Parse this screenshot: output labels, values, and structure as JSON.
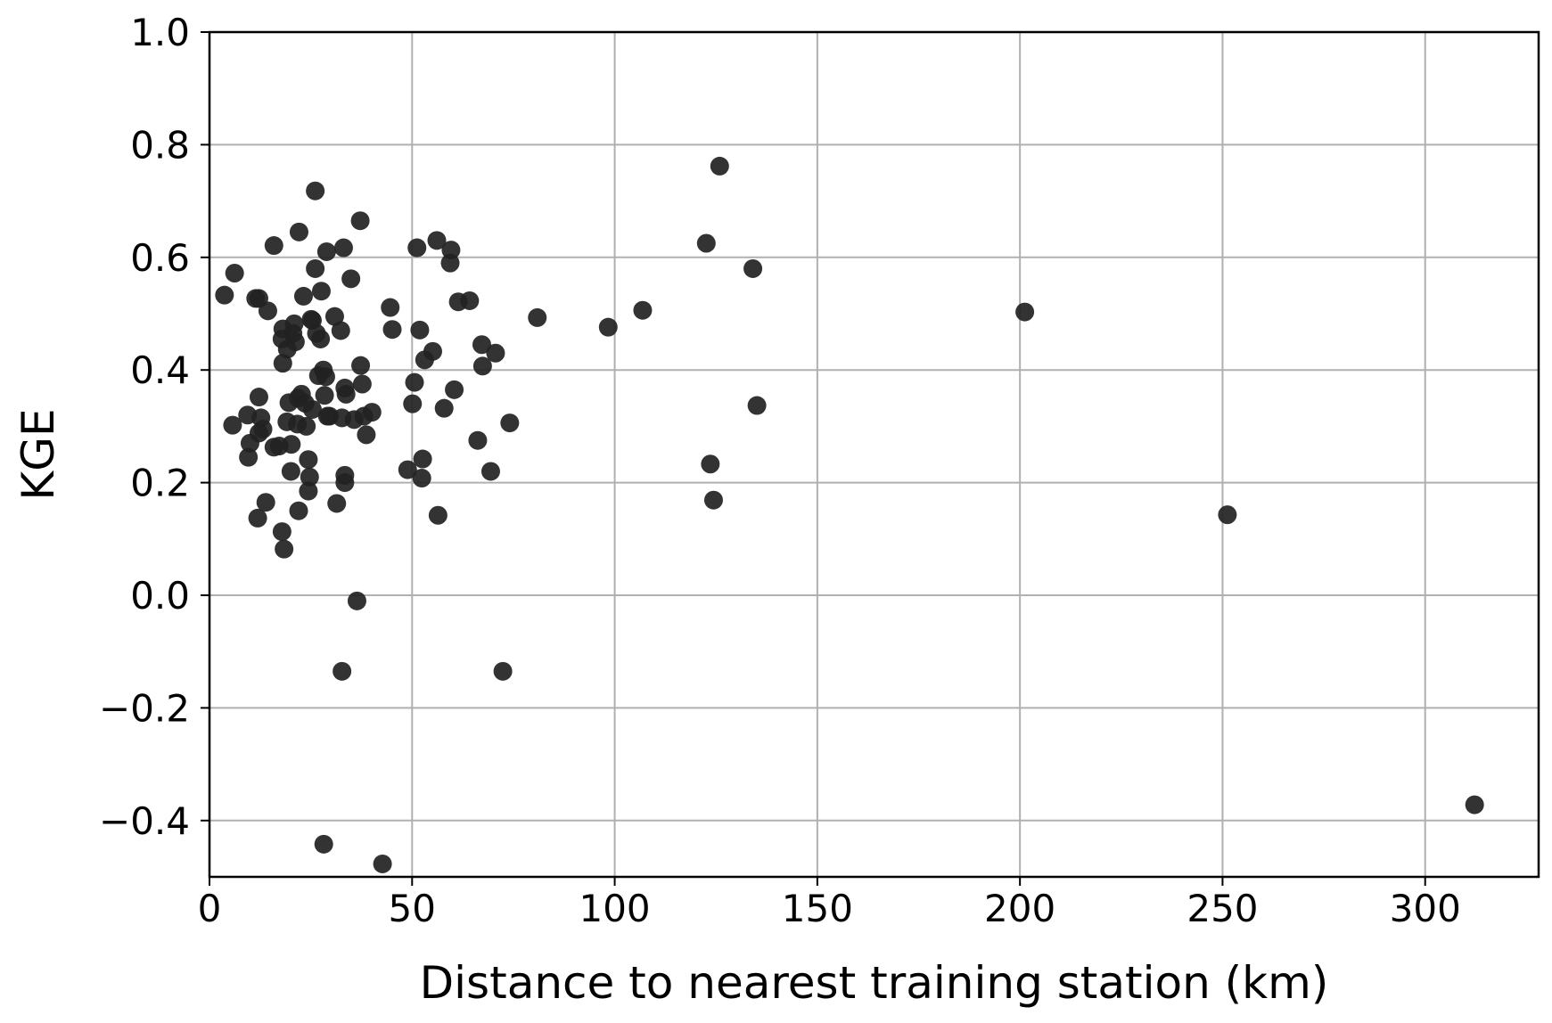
{
  "chart_data": {
    "type": "scatter",
    "title": "",
    "xlabel": "Distance to nearest training station (km)",
    "ylabel": "KGE",
    "xlim": [
      0,
      328
    ],
    "ylim": [
      -0.5,
      1.0
    ],
    "x_ticks": [
      0,
      50,
      100,
      150,
      200,
      250,
      300
    ],
    "y_ticks": [
      -0.4,
      -0.2,
      0.0,
      0.2,
      0.4,
      0.6,
      0.8,
      1.0
    ],
    "x_tick_labels": [
      "0",
      "50",
      "100",
      "150",
      "200",
      "250",
      "300"
    ],
    "y_tick_labels": [
      "−0.4",
      "−0.2",
      "0.0",
      "0.2",
      "0.4",
      "0.6",
      "0.8",
      "1.0"
    ],
    "grid": true,
    "legend": "none",
    "marker_color": "#222222",
    "series": [
      {
        "points": [
          [
            3.7,
            0.533
          ],
          [
            6.2,
            0.572
          ],
          [
            5.7,
            0.302
          ],
          [
            9.4,
            0.32
          ],
          [
            9.6,
            0.245
          ],
          [
            10.0,
            0.27
          ],
          [
            11.4,
            0.527
          ],
          [
            12.2,
            0.527
          ],
          [
            12.2,
            0.352
          ],
          [
            12.7,
            0.315
          ],
          [
            12.2,
            0.288
          ],
          [
            13.2,
            0.295
          ],
          [
            13.9,
            0.165
          ],
          [
            11.9,
            0.137
          ],
          [
            14.4,
            0.505
          ],
          [
            15.9,
            0.621
          ],
          [
            15.9,
            0.263
          ],
          [
            17.2,
            0.265
          ],
          [
            18.1,
            0.473
          ],
          [
            17.9,
            0.455
          ],
          [
            18.1,
            0.412
          ],
          [
            17.9,
            0.113
          ],
          [
            18.4,
            0.082
          ],
          [
            19.2,
            0.437
          ],
          [
            19.1,
            0.308
          ],
          [
            19.6,
            0.342
          ],
          [
            20.1,
            0.22
          ],
          [
            20.2,
            0.268
          ],
          [
            20.6,
            0.465
          ],
          [
            20.9,
            0.482
          ],
          [
            21.2,
            0.45
          ],
          [
            21.7,
            0.304
          ],
          [
            21.9,
            0.35
          ],
          [
            22.1,
            0.645
          ],
          [
            22.0,
            0.15
          ],
          [
            22.7,
            0.357
          ],
          [
            23.2,
            0.531
          ],
          [
            23.6,
            0.341
          ],
          [
            23.9,
            0.3
          ],
          [
            24.4,
            0.241
          ],
          [
            24.4,
            0.185
          ],
          [
            24.7,
            0.21
          ],
          [
            25.1,
            0.49
          ],
          [
            25.4,
            0.33
          ],
          [
            25.4,
            0.488
          ],
          [
            26.1,
            0.718
          ],
          [
            26.1,
            0.58
          ],
          [
            26.4,
            0.465
          ],
          [
            26.9,
            0.39
          ],
          [
            27.4,
            0.455
          ],
          [
            27.6,
            0.54
          ],
          [
            28.1,
            0.4
          ],
          [
            28.4,
            0.355
          ],
          [
            28.9,
            0.61
          ],
          [
            29.1,
            0.318
          ],
          [
            28.7,
            0.388
          ],
          [
            29.6,
            0.318
          ],
          [
            30.9,
            0.495
          ],
          [
            31.4,
            0.163
          ],
          [
            32.4,
            0.47
          ],
          [
            32.7,
            0.315
          ],
          [
            33.1,
            0.617
          ],
          [
            33.4,
            0.213
          ],
          [
            33.4,
            0.2
          ],
          [
            33.7,
            0.357
          ],
          [
            33.4,
            0.368
          ],
          [
            34.9,
            0.562
          ],
          [
            35.7,
            0.312
          ],
          [
            36.4,
            -0.01
          ],
          [
            37.2,
            0.665
          ],
          [
            37.3,
            0.408
          ],
          [
            37.7,
            0.375
          ],
          [
            38.1,
            0.318
          ],
          [
            38.7,
            0.285
          ],
          [
            40.1,
            0.325
          ],
          [
            32.7,
            -0.135
          ],
          [
            28.2,
            -0.442
          ],
          [
            42.7,
            -0.477
          ],
          [
            44.6,
            0.511
          ],
          [
            45.1,
            0.472
          ],
          [
            48.9,
            0.223
          ],
          [
            50.1,
            0.34
          ],
          [
            50.6,
            0.378
          ],
          [
            51.2,
            0.617
          ],
          [
            51.9,
            0.471
          ],
          [
            52.4,
            0.208
          ],
          [
            52.6,
            0.242
          ],
          [
            53.1,
            0.418
          ],
          [
            55.1,
            0.433
          ],
          [
            56.1,
            0.63
          ],
          [
            56.4,
            0.142
          ],
          [
            57.9,
            0.332
          ],
          [
            59.4,
            0.59
          ],
          [
            59.6,
            0.613
          ],
          [
            60.4,
            0.365
          ],
          [
            61.4,
            0.521
          ],
          [
            64.2,
            0.523
          ],
          [
            66.2,
            0.275
          ],
          [
            67.2,
            0.445
          ],
          [
            67.4,
            0.407
          ],
          [
            69.4,
            0.22
          ],
          [
            70.6,
            0.43
          ],
          [
            72.4,
            -0.135
          ],
          [
            74.1,
            0.306
          ],
          [
            80.9,
            0.493
          ],
          [
            98.4,
            0.476
          ],
          [
            106.9,
            0.506
          ],
          [
            122.6,
            0.625
          ],
          [
            123.6,
            0.233
          ],
          [
            124.4,
            0.169
          ],
          [
            125.9,
            0.762
          ],
          [
            134.1,
            0.58
          ],
          [
            135.1,
            0.337
          ],
          [
            201.2,
            0.503
          ],
          [
            251.2,
            0.143
          ],
          [
            312.2,
            -0.372
          ]
        ]
      }
    ]
  }
}
